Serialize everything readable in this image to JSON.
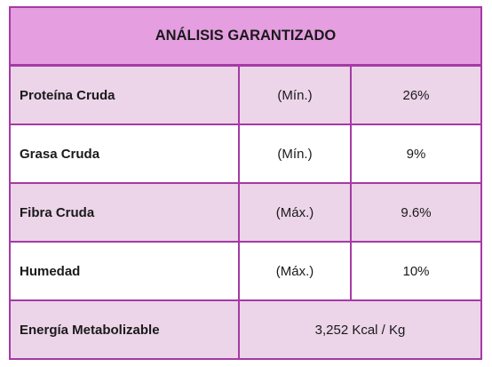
{
  "table": {
    "title": "ANÁLISIS GARANTIZADO",
    "rows": [
      {
        "name": "Proteína Cruda",
        "qualifier": "(Mín.)",
        "value": "26%"
      },
      {
        "name": "Grasa Cruda",
        "qualifier": "(Mín.)",
        "value": "9%"
      },
      {
        "name": "Fibra Cruda",
        "qualifier": "(Máx.)",
        "value": "9.6%"
      },
      {
        "name": "Humedad",
        "qualifier": "(Máx.)",
        "value": "10%"
      }
    ],
    "energy": {
      "name": "Energía Metabolizable",
      "value": "3,252 Kcal / Kg"
    }
  },
  "colors": {
    "border": "#a53aa5",
    "header_bg": "#e59ee0",
    "shaded_row_bg": "#ecd4e9",
    "plain_row_bg": "#ffffff"
  }
}
